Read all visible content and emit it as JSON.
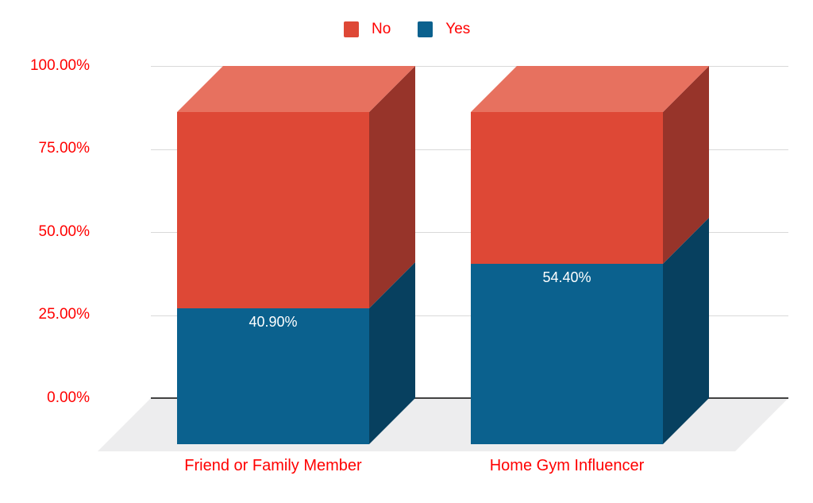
{
  "chart_data": {
    "type": "bar",
    "subtype": "3d-100-percent-stacked-column",
    "title": "",
    "categories": [
      "Friend or Family Member",
      "Home Gym Influencer"
    ],
    "series": [
      {
        "name": "No",
        "values": [
          59.1,
          45.6
        ],
        "color": "#DE4836",
        "color_top": "#E7715F",
        "color_side": "#97342A"
      },
      {
        "name": "Yes",
        "values": [
          40.9,
          54.4
        ],
        "color": "#0B618E",
        "color_side": "#07405F"
      }
    ],
    "data_labels": {
      "series": "Yes",
      "values": [
        "40.90%",
        "54.40%"
      ],
      "color": "#FFFFFF"
    },
    "y_ticks": [
      "100.00%",
      "75.00%",
      "50.00%",
      "25.00%",
      "0.00%"
    ],
    "ylim": [
      0,
      100
    ],
    "xlabel": "",
    "ylabel": "",
    "grid": true,
    "legend_position": "top",
    "axis_text_color": "#FF0000",
    "gridline_color": "#D9D9D9",
    "baseline_color": "#424242",
    "floor_color": "#EDEDEE",
    "background_color": "#FFFFFF"
  }
}
